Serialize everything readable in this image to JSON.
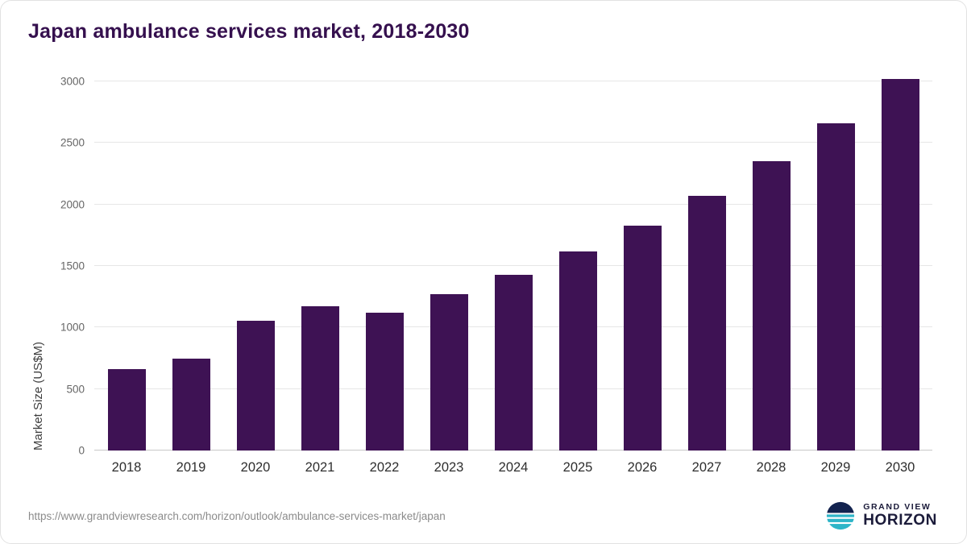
{
  "title": "Japan ambulance services market, 2018-2030",
  "chart_data": {
    "type": "bar",
    "categories": [
      "2018",
      "2019",
      "2020",
      "2021",
      "2022",
      "2023",
      "2024",
      "2025",
      "2026",
      "2027",
      "2028",
      "2029",
      "2030"
    ],
    "values": [
      660,
      745,
      1055,
      1175,
      1120,
      1270,
      1430,
      1615,
      1825,
      2070,
      2350,
      2660,
      3020
    ],
    "title": "Japan ambulance services market, 2018-2030",
    "xlabel": "",
    "ylabel": "Market Size (US$M)",
    "ylim": [
      0,
      3000
    ],
    "yticks": [
      0,
      500,
      1000,
      1500,
      2000,
      2500,
      3000
    ],
    "grid": true,
    "legend": "none",
    "bar_color": "#3e1254"
  },
  "footer": {
    "source_url": "https://www.grandviewresearch.com/horizon/outlook/ambulance-services-market/japan",
    "logo_top": "GRAND VIEW",
    "logo_bottom": "HORIZON"
  },
  "colors": {
    "bar": "#3e1254",
    "title": "#35104e",
    "logo_teal": "#2eb5c8",
    "logo_navy": "#13234f"
  }
}
